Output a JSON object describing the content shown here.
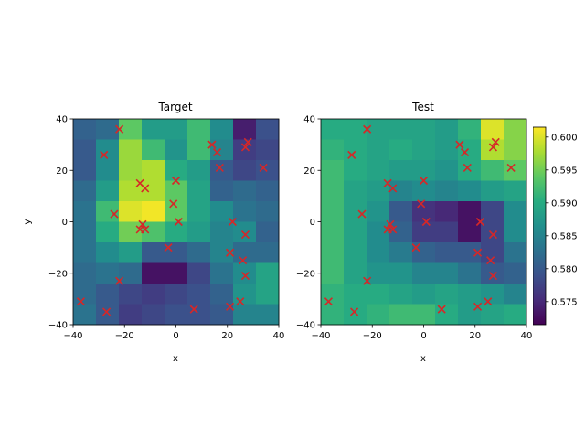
{
  "chart_data": [
    {
      "type": "heatmap",
      "title": "Target",
      "xlabel": "x",
      "ylabel": "y",
      "xlim": [
        -40,
        40
      ],
      "ylim": [
        -40,
        40
      ],
      "xticks": [
        "−40",
        "−20",
        "0",
        "20",
        "40"
      ],
      "yticks": [
        "−40",
        "−20",
        "0",
        "20",
        "40"
      ],
      "grid": [
        [
          0.581,
          0.582,
          0.594,
          0.588,
          0.588,
          0.592,
          0.586,
          0.574,
          0.579
        ],
        [
          0.58,
          0.586,
          0.597,
          0.592,
          0.587,
          0.592,
          0.585,
          0.577,
          0.578
        ],
        [
          0.58,
          0.586,
          0.597,
          0.598,
          0.59,
          0.588,
          0.58,
          0.578,
          0.579
        ],
        [
          0.582,
          0.588,
          0.598,
          0.598,
          0.594,
          0.589,
          0.581,
          0.582,
          0.581
        ],
        [
          0.583,
          0.592,
          0.6,
          0.601,
          0.594,
          0.589,
          0.586,
          0.583,
          0.582
        ],
        [
          0.583,
          0.59,
          0.595,
          0.593,
          0.59,
          0.588,
          0.585,
          0.586,
          0.581
        ],
        [
          0.583,
          0.586,
          0.588,
          0.58,
          0.58,
          0.582,
          0.585,
          0.582,
          0.582
        ],
        [
          0.582,
          0.583,
          0.582,
          0.573,
          0.573,
          0.578,
          0.583,
          0.586,
          0.589
        ],
        [
          0.582,
          0.58,
          0.578,
          0.577,
          0.578,
          0.579,
          0.581,
          0.587,
          0.589
        ],
        [
          0.583,
          0.58,
          0.577,
          0.578,
          0.579,
          0.579,
          0.58,
          0.585,
          0.585
        ]
      ]
    },
    {
      "type": "heatmap",
      "title": "Test",
      "xlabel": "x",
      "ylabel": "",
      "xlim": [
        -40,
        40
      ],
      "ylim": [
        -40,
        40
      ],
      "xticks": [
        "−40",
        "−20",
        "0",
        "20",
        "40"
      ],
      "yticks": [
        "−40",
        "−20",
        "0",
        "20",
        "40"
      ],
      "colorbar": {
        "min": 0.5715,
        "max": 0.6015,
        "ticks": [
          0.575,
          0.58,
          0.585,
          0.59,
          0.595,
          0.6
        ],
        "tick_labels": [
          "0.575",
          "0.580",
          "0.585",
          "0.590",
          "0.595",
          "0.600"
        ]
      },
      "grid": [
        [
          0.59,
          0.59,
          0.589,
          0.589,
          0.589,
          0.588,
          0.591,
          0.6,
          0.596
        ],
        [
          0.591,
          0.59,
          0.589,
          0.59,
          0.589,
          0.588,
          0.59,
          0.598,
          0.596
        ],
        [
          0.592,
          0.59,
          0.589,
          0.588,
          0.588,
          0.587,
          0.59,
          0.592,
          0.594
        ],
        [
          0.592,
          0.589,
          0.588,
          0.585,
          0.586,
          0.585,
          0.586,
          0.588,
          0.589
        ],
        [
          0.592,
          0.589,
          0.587,
          0.58,
          0.576,
          0.575,
          0.573,
          0.578,
          0.586
        ],
        [
          0.592,
          0.589,
          0.586,
          0.581,
          0.577,
          0.577,
          0.573,
          0.578,
          0.586
        ],
        [
          0.592,
          0.589,
          0.586,
          0.584,
          0.581,
          0.58,
          0.58,
          0.578,
          0.583
        ],
        [
          0.592,
          0.589,
          0.587,
          0.587,
          0.585,
          0.585,
          0.583,
          0.58,
          0.581
        ],
        [
          0.591,
          0.59,
          0.59,
          0.589,
          0.588,
          0.589,
          0.588,
          0.587,
          0.585
        ],
        [
          0.591,
          0.59,
          0.591,
          0.592,
          0.592,
          0.59,
          0.588,
          0.589,
          0.59
        ]
      ]
    }
  ],
  "sample_points": {
    "marker": "x",
    "color": "#d62728",
    "points": [
      [
        -22,
        36
      ],
      [
        -28,
        26
      ],
      [
        -14,
        15
      ],
      [
        -12,
        13
      ],
      [
        -24,
        3
      ],
      [
        -13,
        -1
      ],
      [
        -14,
        -3
      ],
      [
        -12,
        -3
      ],
      [
        -1,
        7
      ],
      [
        0,
        16
      ],
      [
        1,
        0
      ],
      [
        -3,
        -10
      ],
      [
        -22,
        -23
      ],
      [
        -37,
        -31
      ],
      [
        -27,
        -35
      ],
      [
        7,
        -34
      ],
      [
        14,
        30
      ],
      [
        16,
        27
      ],
      [
        17,
        21
      ],
      [
        27,
        29
      ],
      [
        28,
        31
      ],
      [
        34,
        21
      ],
      [
        22,
        0
      ],
      [
        27,
        -5
      ],
      [
        21,
        -12
      ],
      [
        26,
        -15
      ],
      [
        27,
        -21
      ],
      [
        25,
        -31
      ],
      [
        21,
        -33
      ]
    ]
  }
}
